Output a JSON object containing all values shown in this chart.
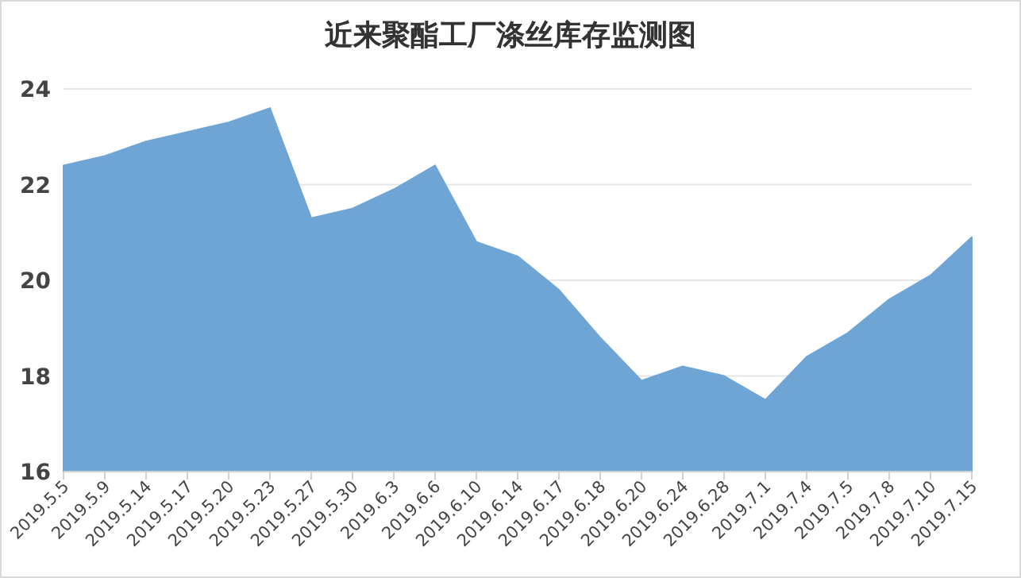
{
  "chart_data": {
    "type": "area",
    "title": "近来聚酯工厂涤丝库存监测图",
    "categories": [
      "2019.5.5",
      "2019.5.9",
      "2019.5.14",
      "2019.5.17",
      "2019.5.20",
      "2019.5.23",
      "2019.5.27",
      "2019.5.30",
      "2019.6.3",
      "2019.6.6",
      "2019.6.10",
      "2019.6.14",
      "2019.6.17",
      "2019.6.18",
      "2019.6.20",
      "2019.6.24",
      "2019.6.28",
      "2019.7.1",
      "2019.7.4",
      "2019.7.5",
      "2019.7.8",
      "2019.7.10",
      "2019.7.15"
    ],
    "series": [
      {
        "color": "#6fa5d5",
        "values": [
          22.4,
          22.6,
          22.9,
          23.1,
          23.3,
          23.6,
          21.3,
          21.5,
          21.9,
          22.4,
          20.8,
          20.5,
          19.8,
          18.8,
          17.9,
          18.2,
          18.0,
          17.5,
          18.4,
          18.9,
          19.6,
          20.1,
          20.9
        ]
      }
    ],
    "ylim": [
      16,
      24
    ],
    "yticks": [
      16,
      18,
      20,
      22,
      24
    ],
    "grid": "y"
  }
}
